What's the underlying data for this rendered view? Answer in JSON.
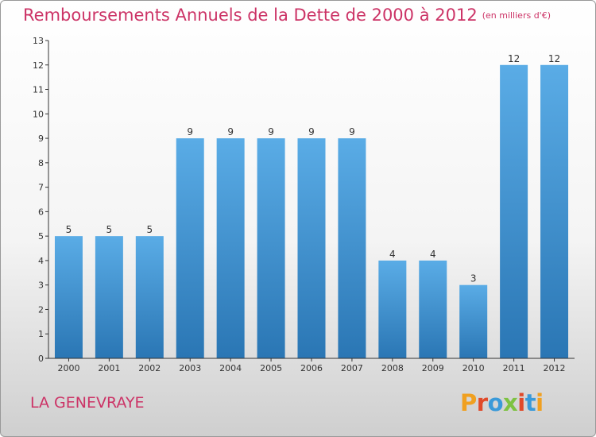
{
  "title": "Remboursements Annuels de la Dette de 2000 à 2012",
  "title_unit": "(en milliers d'€)",
  "commune": "LA GENEVRAYE",
  "brand": "Proxiti",
  "colors": {
    "title": "#cc3366",
    "bar_light": "#5aace6",
    "bar_dark": "#2a76b4",
    "axis": "#333333"
  },
  "chart_data": {
    "type": "bar",
    "categories": [
      "2000",
      "2001",
      "2002",
      "2003",
      "2004",
      "2005",
      "2006",
      "2007",
      "2008",
      "2009",
      "2010",
      "2011",
      "2012"
    ],
    "values": [
      5,
      5,
      5,
      9,
      9,
      9,
      9,
      9,
      4,
      4,
      3,
      12,
      12
    ],
    "ylim": [
      0,
      13
    ],
    "yticks": [
      0,
      1,
      2,
      3,
      4,
      5,
      6,
      7,
      8,
      9,
      10,
      11,
      12,
      13
    ],
    "grid": false,
    "data_labels": true
  }
}
